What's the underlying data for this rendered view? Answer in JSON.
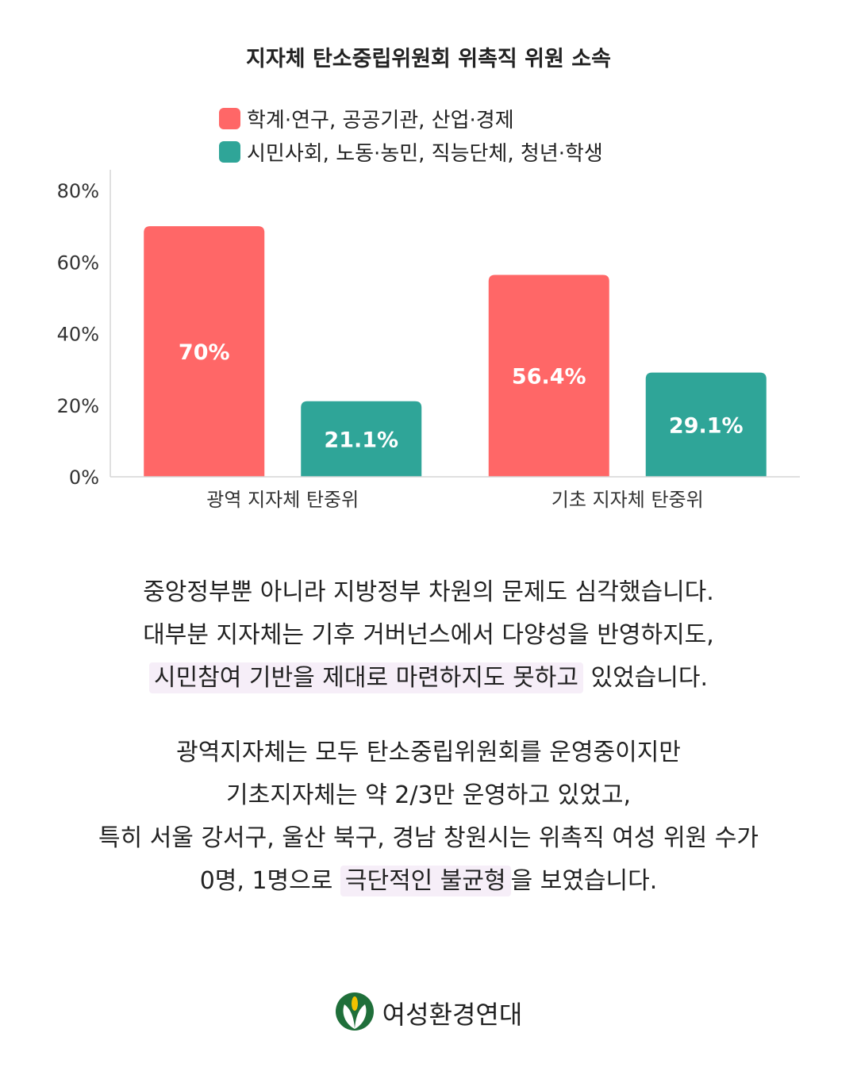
{
  "chart_data": {
    "type": "bar",
    "title": "지자체 탄소중립위원회 위촉직 위원 소속",
    "categories": [
      "광역 지자체 탄중위",
      "기초 지자체 탄중위"
    ],
    "series": [
      {
        "name": "학계·연구, 공공기관, 산업·경제",
        "values": [
          70,
          56.4
        ],
        "labels": [
          "70%",
          "56.4%"
        ],
        "color": "#ff6767"
      },
      {
        "name": "시민사회, 노동·농민, 직능단체, 청년·학생",
        "values": [
          21.1,
          29.1
        ],
        "labels": [
          "21.1%",
          "29.1%"
        ],
        "color": "#2fa598"
      }
    ],
    "yticks": [
      "0%",
      "20%",
      "40%",
      "60%",
      "80%"
    ],
    "ylim": [
      0,
      85
    ],
    "legend_position": "top",
    "grid": false
  },
  "paragraph1": {
    "line1": "중앙정부뿐 아니라 지방정부 차원의 문제도 심각했습니다.",
    "line2": "대부분 지자체는 기후 거버넌스에서 다양성을 반영하지도,",
    "line3_highlight": "시민참여 기반을 제대로 마련하지도 못하고",
    "line3_rest": " 있었습니다."
  },
  "paragraph2": {
    "line1": "광역지자체는 모두 탄소중립위원회를 운영중이지만",
    "line2": "기초지자체는 약 2/3만 운영하고 있었고,",
    "line3": "특히 서울 강서구, 울산 북구, 경남 창원시는 위촉직 여성 위원 수가",
    "line4_pre": "0명, 1명으로 ",
    "line4_highlight": "극단적인 불균형",
    "line4_post": "을 보였습니다."
  },
  "footer": {
    "org_name": "여성환경연대",
    "logo_icon": "leaf-sprout-icon"
  }
}
